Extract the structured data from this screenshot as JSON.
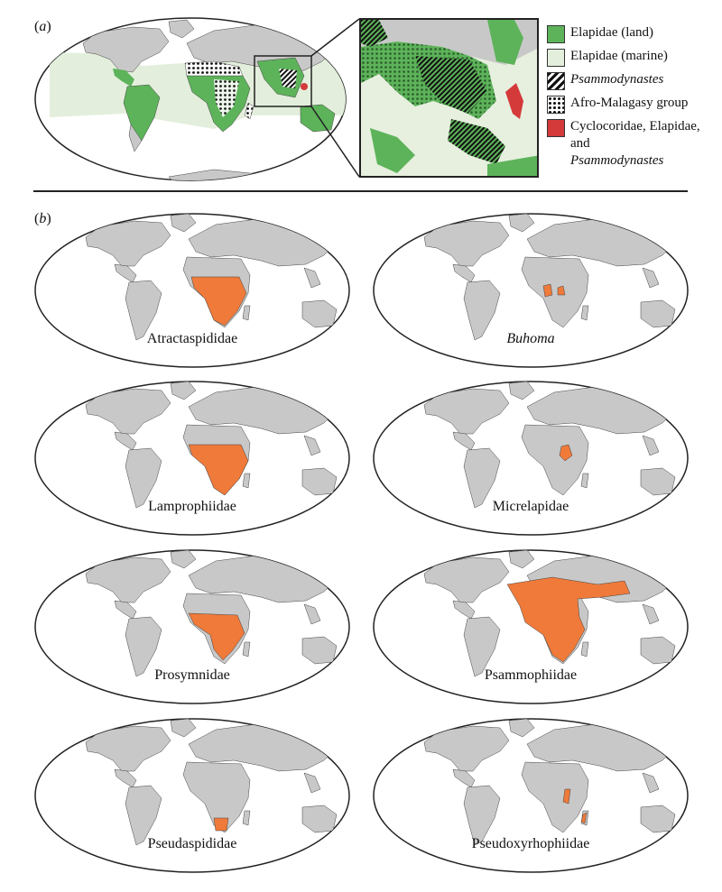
{
  "panel_a": {
    "label_paren_open": "(",
    "label_letter": "a",
    "label_paren_close": ")",
    "legend": [
      {
        "label": "Elapidae (land)",
        "color": "#5db35a",
        "pattern": "solid",
        "italic": false
      },
      {
        "label": "Elapidae (marine)",
        "color": "#e3efdc",
        "pattern": "solid",
        "italic": false
      },
      {
        "label": "Psammodynastes",
        "color": "#ffffff",
        "pattern": "diagonal-stripes",
        "italic": true
      },
      {
        "label": "Afro-Malagasy group",
        "color": "#ffffff",
        "pattern": "dots",
        "italic": false
      },
      {
        "label": "Cyclocoridae, Elapidae, and",
        "label2": "Psammodynastes",
        "color": "#d43a3a",
        "pattern": "solid",
        "italic": false
      }
    ]
  },
  "panel_b": {
    "label_paren_open": "(",
    "label_letter": "b",
    "label_paren_close": ")",
    "maps": [
      {
        "caption": "Atractaspididae",
        "italic": false
      },
      {
        "caption": "Buhoma",
        "italic": true
      },
      {
        "caption": "Lamprophiidae",
        "italic": false
      },
      {
        "caption": "Micrelapidae",
        "italic": false
      },
      {
        "caption": "Prosymnidae",
        "italic": false
      },
      {
        "caption": "Psammophiidae",
        "italic": false
      },
      {
        "caption": "Pseudaspididae",
        "italic": false
      },
      {
        "caption": "Pseudoxyrhophiidae",
        "italic": false
      }
    ]
  },
  "colors": {
    "land": "#c8c8c8",
    "range": "#ef7a3a",
    "ocean": "#ffffff",
    "outline": "#222222",
    "elapid_land": "#5db35a",
    "elapid_marine": "#e3efdc",
    "cyclo": "#d43a3a"
  }
}
